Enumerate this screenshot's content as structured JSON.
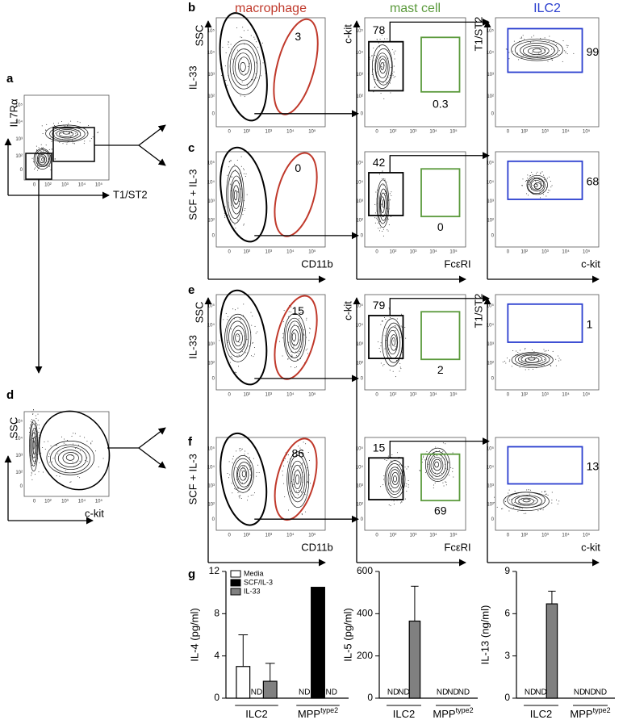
{
  "figure": {
    "panels": [
      "a",
      "b",
      "c",
      "d",
      "e",
      "f",
      "g"
    ],
    "columns": [
      "macrophage",
      "mast cell",
      "ILC2"
    ],
    "column_colors": [
      "#c0392b",
      "#5b9a3c",
      "#2a3ecf"
    ],
    "a": {
      "y_label": "IL7Rα",
      "x_label": "T1/ST2"
    },
    "d": {
      "y_label": "SSC",
      "x_label": "c-kit"
    },
    "x_labels": [
      "CD11b",
      "FcεRI",
      "c-kit"
    ],
    "ticks": [
      "0",
      "10²",
      "10³",
      "10⁴",
      "10⁵"
    ],
    "rows": [
      {
        "labels": [
          "SSC",
          "IL-33"
        ],
        "axis": [
          "c-kit",
          "T1/ST2"
        ],
        "gates": [
          "3",
          "78",
          "0.3",
          "99"
        ]
      },
      {
        "labels": [
          "SCF + IL-3"
        ],
        "gates": [
          "0",
          "42",
          "0",
          "68"
        ]
      },
      {
        "labels": [
          "SSC",
          "IL-33"
        ],
        "axis": [
          "c-kit",
          "T1/ST2"
        ],
        "gates": [
          "15",
          "79",
          "2",
          "1"
        ]
      },
      {
        "labels": [
          "SCF + IL-3"
        ],
        "gates": [
          "86",
          "15",
          "69",
          "13"
        ]
      }
    ]
  },
  "chart_data": [
    {
      "type": "bar",
      "ylabel": "IL-4 (pg/ml)",
      "categories": [
        "ILC2",
        "MPP"
      ],
      "category_sup": [
        null,
        "type2"
      ],
      "ylim": [
        0,
        12
      ],
      "yticks": [
        0,
        4,
        8,
        12
      ],
      "legend": true,
      "series": [
        {
          "name": "Media",
          "color": "#ffffff",
          "values": [
            3,
            null
          ],
          "errors": [
            3,
            null
          ],
          "value_labels": [
            null,
            "ND"
          ]
        },
        {
          "name": "SCF/IL-3",
          "color": "#000000",
          "values": [
            null,
            10.5
          ],
          "value_labels": [
            "ND",
            null
          ]
        },
        {
          "name": "IL-33",
          "color": "#808080",
          "values": [
            1.6,
            null
          ],
          "errors": [
            1.7,
            null
          ],
          "value_labels": [
            null,
            "ND"
          ]
        }
      ]
    },
    {
      "type": "bar",
      "ylabel": "IL-5 (pg/ml)",
      "categories": [
        "ILC2",
        "MPP"
      ],
      "category_sup": [
        null,
        "type2"
      ],
      "ylim": [
        0,
        600
      ],
      "yticks": [
        0,
        200,
        400,
        600
      ],
      "legend": false,
      "series": [
        {
          "color": "#ffffff",
          "values": [
            null,
            null
          ],
          "value_labels": [
            "ND",
            "ND"
          ]
        },
        {
          "color": "#000000",
          "values": [
            null,
            null
          ],
          "value_labels": [
            "ND",
            "ND"
          ]
        },
        {
          "color": "#808080",
          "values": [
            365,
            null
          ],
          "errors": [
            165,
            null
          ],
          "value_labels": [
            null,
            "ND"
          ]
        }
      ]
    },
    {
      "type": "bar",
      "ylabel": "IL-13 (ng/ml)",
      "categories": [
        "ILC2",
        "MPP"
      ],
      "category_sup": [
        null,
        "type2"
      ],
      "ylim": [
        0,
        9
      ],
      "yticks": [
        0,
        3,
        6,
        9
      ],
      "legend": false,
      "series": [
        {
          "color": "#ffffff",
          "values": [
            null,
            null
          ],
          "value_labels": [
            "ND",
            "ND"
          ]
        },
        {
          "color": "#000000",
          "values": [
            null,
            null
          ],
          "value_labels": [
            "ND",
            "ND"
          ]
        },
        {
          "color": "#808080",
          "values": [
            6.7,
            null
          ],
          "errors": [
            0.9,
            null
          ],
          "value_labels": [
            null,
            "ND"
          ]
        }
      ]
    }
  ]
}
